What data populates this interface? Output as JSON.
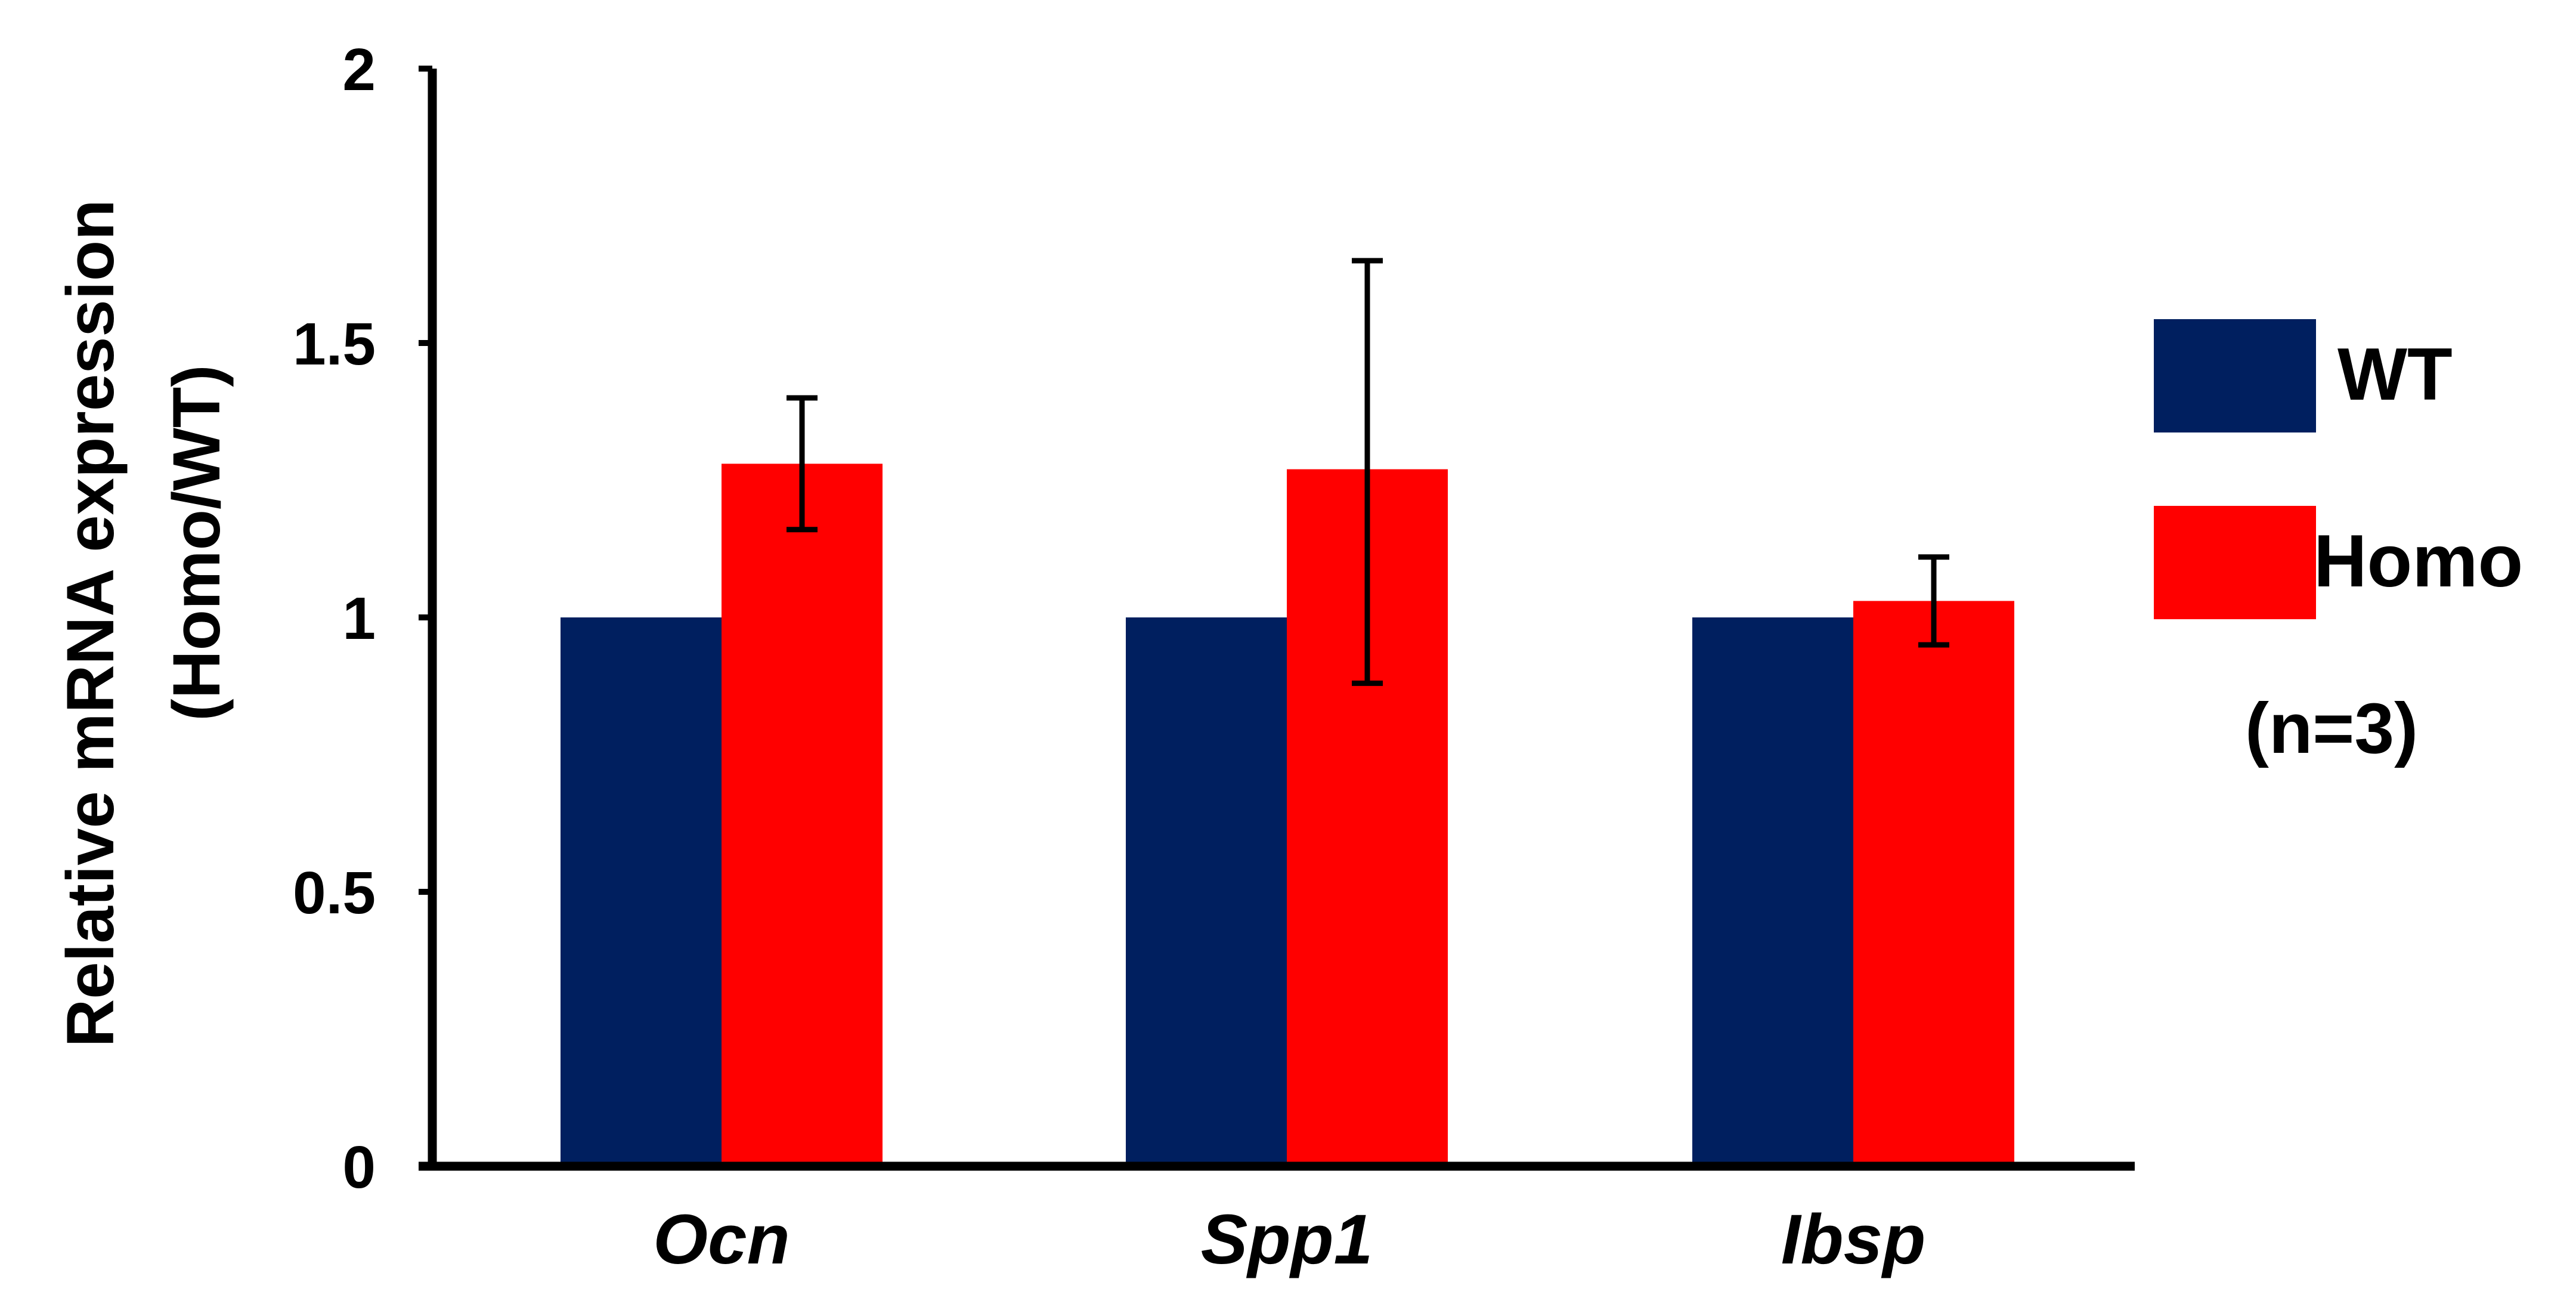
{
  "chart_data": {
    "type": "bar",
    "categories": [
      "Ocn",
      "Spp1",
      "Ibsp"
    ],
    "series": [
      {
        "name": "WT",
        "values": [
          1.0,
          1.0,
          1.0
        ],
        "color": "#001f5f"
      },
      {
        "name": "Homo",
        "values": [
          1.28,
          1.27,
          1.03
        ],
        "color": "#ff0000",
        "error_low": [
          1.16,
          0.88,
          0.95
        ],
        "error_high": [
          1.4,
          1.65,
          1.11
        ]
      }
    ],
    "ylabel": [
      "Relative mRNA expression",
      "(Homo/WT)"
    ],
    "ylim": [
      0,
      2
    ],
    "yticks": [
      "0",
      "0.5",
      "1",
      "1.5",
      "2"
    ],
    "grid": false,
    "legend_position": "right",
    "annotation": "(n=3)"
  }
}
